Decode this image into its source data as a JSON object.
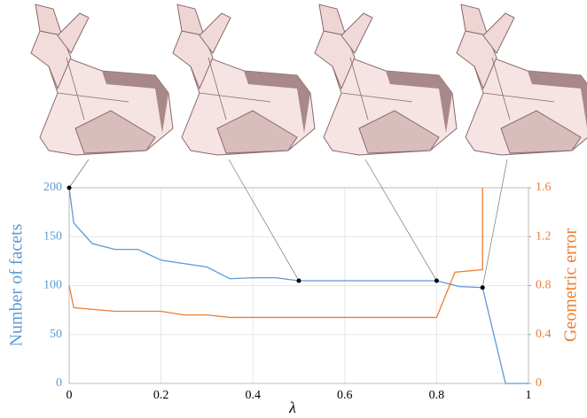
{
  "chart_data": {
    "type": "line",
    "x_label": "λ",
    "y_label": "Number of facets",
    "y2_label": "Geometric error",
    "xlim": [
      0,
      1
    ],
    "xticks": [
      0,
      0.2,
      0.4,
      0.6,
      0.8,
      1
    ],
    "ylim": [
      0,
      200
    ],
    "yticks": [
      0,
      50,
      100,
      150,
      200
    ],
    "y2lim": [
      0,
      1.6
    ],
    "y2ticks": [
      0,
      0.4,
      0.8,
      1.2,
      1.6
    ],
    "grid": true,
    "series": [
      {
        "name": "Number of facets",
        "color": "#5b9bd5",
        "x": [
          0,
          0.01,
          0.05,
          0.1,
          0.15,
          0.2,
          0.3,
          0.35,
          0.4,
          0.45,
          0.5,
          0.8,
          0.85,
          0.9,
          0.95,
          1
        ],
        "values": [
          200,
          164,
          143,
          137,
          137,
          126,
          119,
          107,
          108,
          108,
          105,
          105,
          99,
          98,
          0,
          0
        ]
      },
      {
        "name": "Geometric error",
        "color": "#ed7d31",
        "axis": "y2",
        "x": [
          0,
          0.01,
          0.1,
          0.2,
          0.25,
          0.3,
          0.35,
          0.8,
          0.84,
          0.9,
          0.9
        ],
        "values": [
          0.8,
          0.62,
          0.59,
          0.59,
          0.56,
          0.56,
          0.54,
          0.54,
          0.91,
          0.93,
          1.6
        ]
      }
    ]
  }
}
